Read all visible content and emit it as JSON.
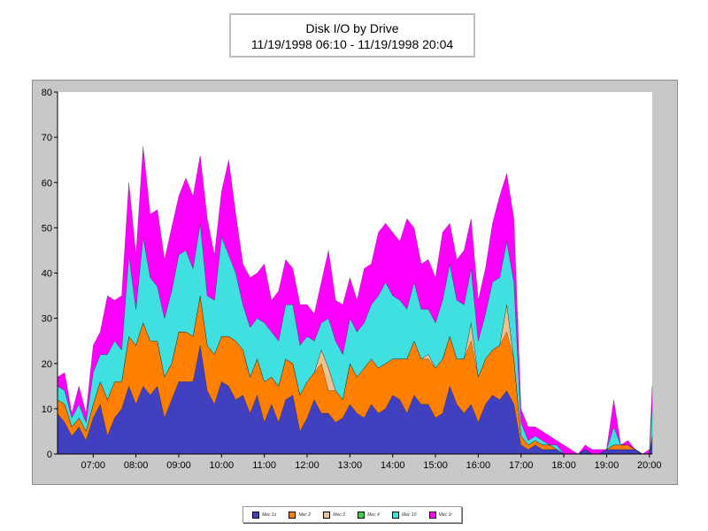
{
  "chart_data": {
    "type": "area",
    "stacked": true,
    "title": "Disk I/O by Drive",
    "subtitle": "11/19/1998 06:10 - 11/19/1998 20:04",
    "xlabel": "",
    "ylabel": "",
    "xlim": [
      "06:10",
      "20:04"
    ],
    "ylim": [
      0,
      80
    ],
    "yticks": [
      0,
      10,
      20,
      30,
      40,
      50,
      60,
      70,
      80
    ],
    "xticks": [
      "07:00",
      "08:00",
      "09:00",
      "10:00",
      "11:00",
      "12:00",
      "13:00",
      "14:00",
      "15:00",
      "16:00",
      "17:00",
      "18:00",
      "19:00",
      "20:00"
    ],
    "grid": false,
    "legend_position": "bottom",
    "x": [
      "06:10",
      "06:20",
      "06:30",
      "06:40",
      "06:50",
      "07:00",
      "07:10",
      "07:20",
      "07:30",
      "07:40",
      "07:50",
      "08:00",
      "08:10",
      "08:20",
      "08:30",
      "08:40",
      "08:50",
      "09:00",
      "09:10",
      "09:20",
      "09:30",
      "09:40",
      "09:50",
      "10:00",
      "10:10",
      "10:20",
      "10:30",
      "10:40",
      "10:50",
      "11:00",
      "11:10",
      "11:20",
      "11:30",
      "11:40",
      "11:50",
      "12:00",
      "12:10",
      "12:20",
      "12:30",
      "12:40",
      "12:50",
      "13:00",
      "13:10",
      "13:20",
      "13:30",
      "13:40",
      "13:50",
      "14:00",
      "14:10",
      "14:20",
      "14:30",
      "14:40",
      "14:50",
      "15:00",
      "15:10",
      "15:20",
      "15:30",
      "15:40",
      "15:50",
      "16:00",
      "16:10",
      "16:20",
      "16:30",
      "16:40",
      "16:50",
      "17:00",
      "17:10",
      "17:20",
      "17:30",
      "17:40",
      "17:50",
      "18:00",
      "18:10",
      "18:20",
      "18:30",
      "18:40",
      "18:50",
      "19:00",
      "19:10",
      "19:20",
      "19:30",
      "19:40",
      "19:50",
      "20:00",
      "20:04"
    ],
    "series": [
      {
        "name": "Mec 1s",
        "color": "#4040c0",
        "values": [
          9,
          7,
          4,
          6,
          3,
          8,
          11,
          4,
          8,
          10,
          15,
          11,
          15,
          13,
          15,
          8,
          12,
          16,
          16,
          16,
          24,
          14,
          11,
          16,
          15,
          12,
          13,
          9,
          13,
          7,
          11,
          7,
          12,
          13,
          5,
          8,
          12,
          9,
          9,
          7,
          8,
          11,
          9,
          8,
          11,
          9,
          10,
          13,
          12,
          9,
          13,
          11,
          11,
          8,
          9,
          15,
          11,
          9,
          11,
          7,
          11,
          13,
          12,
          14,
          11,
          2,
          1,
          2,
          1,
          1,
          1,
          0,
          0,
          0,
          1,
          0,
          0,
          1,
          1,
          1,
          1,
          1,
          0,
          0,
          3
        ]
      },
      {
        "name": "Mec 2",
        "color": "#ff8000",
        "values": [
          3,
          4,
          2,
          2,
          2,
          3,
          5,
          8,
          8,
          6,
          11,
          13,
          14,
          12,
          10,
          9,
          8,
          11,
          11,
          10,
          11,
          10,
          11,
          10,
          11,
          13,
          10,
          8,
          8,
          9,
          6,
          8,
          9,
          7,
          8,
          8,
          6,
          11,
          5,
          7,
          4,
          9,
          8,
          11,
          10,
          10,
          10,
          8,
          9,
          12,
          12,
          10,
          10,
          11,
          12,
          11,
          10,
          12,
          14,
          10,
          10,
          10,
          12,
          13,
          10,
          2,
          1,
          1,
          1,
          1,
          0,
          0,
          0,
          0,
          0,
          0,
          0,
          0,
          1,
          1,
          1,
          0,
          0,
          0,
          1
        ]
      },
      {
        "name": "Mec 3",
        "color": "#f0c090",
        "values": [
          0,
          0,
          0,
          0,
          0,
          0,
          0,
          0,
          0,
          0,
          0,
          0,
          0,
          0,
          0,
          0,
          0,
          0,
          0,
          0,
          0,
          0,
          0,
          0,
          0,
          0,
          0,
          0,
          0,
          0,
          0,
          0,
          0,
          0,
          0,
          0,
          0,
          3,
          5,
          0,
          0,
          0,
          0,
          0,
          0,
          0,
          0,
          0,
          0,
          0,
          0,
          0,
          1,
          0,
          0,
          0,
          0,
          0,
          4,
          0,
          0,
          0,
          0,
          6,
          0,
          0,
          0,
          0,
          0,
          0,
          0,
          0,
          0,
          0,
          0,
          0,
          0,
          0,
          0,
          0,
          0,
          0,
          0,
          0,
          0
        ]
      },
      {
        "name": "Mec 4",
        "color": "#40d040",
        "values": [
          0,
          0,
          0,
          0,
          0,
          0,
          0,
          0,
          0,
          0,
          0,
          0,
          0,
          0,
          0,
          0,
          0,
          0,
          0,
          0,
          0,
          0,
          0,
          0,
          0,
          0,
          0,
          0,
          0,
          0,
          0,
          0,
          0,
          0,
          0,
          0,
          0,
          0,
          0,
          0,
          0,
          0,
          0,
          0,
          0,
          0,
          0,
          0,
          0,
          0,
          0,
          0,
          0,
          0,
          0,
          0,
          0,
          0,
          0,
          0,
          0,
          0,
          0,
          0,
          0,
          0,
          0,
          0,
          0,
          0,
          0,
          0,
          0,
          0,
          0,
          0,
          0,
          0,
          0,
          0,
          0,
          0,
          0,
          0,
          0
        ]
      },
      {
        "name": "Mec 10",
        "color": "#40e0e0",
        "values": [
          3,
          3,
          2,
          3,
          2,
          7,
          6,
          10,
          9,
          7,
          18,
          8,
          19,
          14,
          12,
          13,
          16,
          17,
          18,
          15,
          16,
          11,
          12,
          22,
          18,
          15,
          10,
          11,
          9,
          13,
          10,
          10,
          12,
          13,
          11,
          10,
          7,
          6,
          11,
          11,
          10,
          10,
          10,
          10,
          12,
          16,
          18,
          14,
          13,
          11,
          13,
          11,
          10,
          10,
          13,
          16,
          13,
          12,
          12,
          8,
          10,
          15,
          15,
          14,
          17,
          3,
          1,
          1,
          1,
          0,
          1,
          0,
          0,
          0,
          0,
          0,
          0,
          0,
          4,
          0,
          0,
          0,
          0,
          0,
          7
        ]
      },
      {
        "name": "Mec 1r",
        "color": "#ff00ff",
        "values": [
          2,
          4,
          1,
          4,
          2,
          6,
          5,
          13,
          9,
          12,
          16,
          12,
          20,
          14,
          17,
          13,
          14,
          13,
          16,
          16,
          15,
          17,
          10,
          10,
          21,
          13,
          9,
          11,
          10,
          13,
          7,
          11,
          10,
          8,
          9,
          7,
          6,
          9,
          15,
          9,
          11,
          9,
          7,
          12,
          9,
          14,
          13,
          14,
          13,
          20,
          12,
          10,
          11,
          10,
          15,
          9,
          9,
          12,
          11,
          9,
          10,
          13,
          18,
          15,
          14,
          3,
          3,
          2,
          2,
          2,
          1,
          2,
          1,
          0,
          1,
          1,
          1,
          0,
          6,
          0,
          1,
          0,
          0,
          1,
          4
        ]
      }
    ]
  }
}
